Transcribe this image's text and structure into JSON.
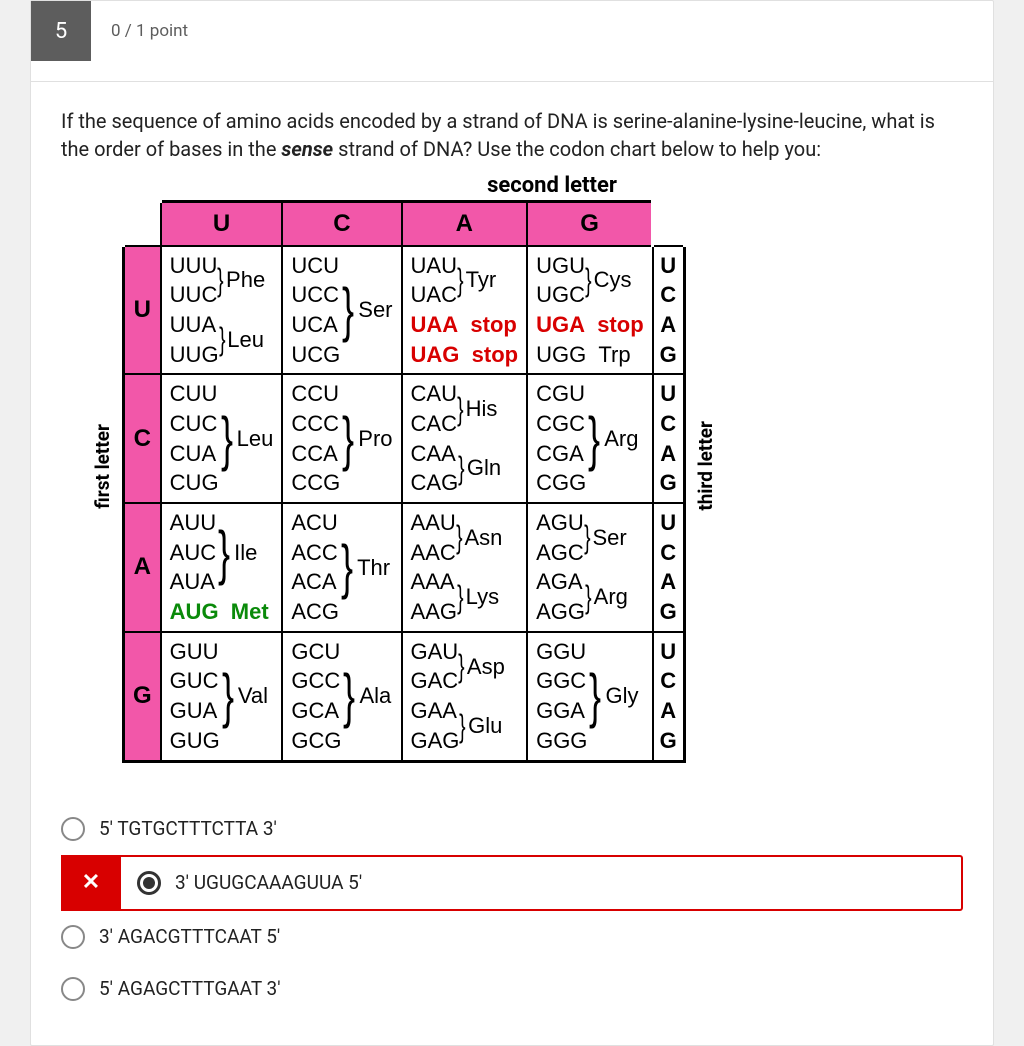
{
  "question": {
    "number": "5",
    "score": "0 / 1 point",
    "text_before": "If the sequence of amino acids encoded by a strand of DNA is serine-alanine-lysine-leucine, what is the order of bases in the ",
    "text_em": "sense",
    "text_after": " strand of DNA? Use the codon chart below to help you:"
  },
  "labels": {
    "second": "second letter",
    "first": "first letter",
    "third": "third letter"
  },
  "codon_chart": {
    "col_letters": [
      "U",
      "C",
      "A",
      "G"
    ],
    "row_letters": [
      "U",
      "C",
      "A",
      "G"
    ],
    "third_letters": [
      "U",
      "C",
      "A",
      "G"
    ],
    "header_bg": "#f257a9",
    "border": "#000000",
    "stop_color": "#d80000",
    "met_color": "#0a8a0a",
    "rows": [
      {
        "first": "U",
        "cells": [
          {
            "groups": [
              {
                "codons": [
                  "UUU",
                  "UUC"
                ],
                "aa": "Phe"
              },
              {
                "codons": [
                  "UUA",
                  "UUG"
                ],
                "aa": "Leu"
              }
            ]
          },
          {
            "groups": [
              {
                "codons": [
                  "UCU",
                  "UCC",
                  "UCA",
                  "UCG"
                ],
                "aa": "Ser"
              }
            ]
          },
          {
            "groups": [
              {
                "codons": [
                  "UAU",
                  "UAC"
                ],
                "aa": "Tyr"
              },
              {
                "codons": [
                  "UAA",
                  "UAG"
                ],
                "aa": "stop",
                "stop": true,
                "inline": true
              }
            ]
          },
          {
            "groups": [
              {
                "codons": [
                  "UGU",
                  "UGC"
                ],
                "aa": "Cys"
              },
              {
                "codons": [
                  "UGA"
                ],
                "aa": "stop",
                "stop": true,
                "inline": true
              },
              {
                "codons": [
                  "UGG"
                ],
                "aa": "Trp",
                "inline": true
              }
            ]
          }
        ]
      },
      {
        "first": "C",
        "cells": [
          {
            "groups": [
              {
                "codons": [
                  "CUU",
                  "CUC",
                  "CUA",
                  "CUG"
                ],
                "aa": "Leu"
              }
            ]
          },
          {
            "groups": [
              {
                "codons": [
                  "CCU",
                  "CCC",
                  "CCA",
                  "CCG"
                ],
                "aa": "Pro"
              }
            ]
          },
          {
            "groups": [
              {
                "codons": [
                  "CAU",
                  "CAC"
                ],
                "aa": "His"
              },
              {
                "codons": [
                  "CAA",
                  "CAG"
                ],
                "aa": "Gln"
              }
            ]
          },
          {
            "groups": [
              {
                "codons": [
                  "CGU",
                  "CGC",
                  "CGA",
                  "CGG"
                ],
                "aa": "Arg"
              }
            ]
          }
        ]
      },
      {
        "first": "A",
        "cells": [
          {
            "groups": [
              {
                "codons": [
                  "AUU",
                  "AUC",
                  "AUA"
                ],
                "aa": "Ile"
              },
              {
                "codons": [
                  "AUG"
                ],
                "aa": "Met",
                "met": true,
                "inline": true
              }
            ]
          },
          {
            "groups": [
              {
                "codons": [
                  "ACU",
                  "ACC",
                  "ACA",
                  "ACG"
                ],
                "aa": "Thr"
              }
            ]
          },
          {
            "groups": [
              {
                "codons": [
                  "AAU",
                  "AAC"
                ],
                "aa": "Asn"
              },
              {
                "codons": [
                  "AAA",
                  "AAG"
                ],
                "aa": "Lys"
              }
            ]
          },
          {
            "groups": [
              {
                "codons": [
                  "AGU",
                  "AGC"
                ],
                "aa": "Ser"
              },
              {
                "codons": [
                  "AGA",
                  "AGG"
                ],
                "aa": "Arg"
              }
            ]
          }
        ]
      },
      {
        "first": "G",
        "cells": [
          {
            "groups": [
              {
                "codons": [
                  "GUU",
                  "GUC",
                  "GUA",
                  "GUG"
                ],
                "aa": "Val"
              }
            ]
          },
          {
            "groups": [
              {
                "codons": [
                  "GCU",
                  "GCC",
                  "GCA",
                  "GCG"
                ],
                "aa": "Ala"
              }
            ]
          },
          {
            "groups": [
              {
                "codons": [
                  "GAU",
                  "GAC"
                ],
                "aa": "Asp"
              },
              {
                "codons": [
                  "GAA",
                  "GAG"
                ],
                "aa": "Glu"
              }
            ]
          },
          {
            "groups": [
              {
                "codons": [
                  "GGU",
                  "GGC",
                  "GGA",
                  "GGG"
                ],
                "aa": "Gly"
              }
            ]
          }
        ]
      }
    ]
  },
  "answers": [
    {
      "text": "5' TGTGCTTTCTTA 3'",
      "selected": false,
      "wrong": false
    },
    {
      "text": "3' UGUGCAAAGUUA 5'",
      "selected": true,
      "wrong": true
    },
    {
      "text": "3' AGACGTTTCAAT 5'",
      "selected": false,
      "wrong": false
    },
    {
      "text": "5' AGAGCTTTGAAT 3'",
      "selected": false,
      "wrong": false
    }
  ],
  "colors": {
    "wrong_bg": "#d80000",
    "card_bg": "#ffffff",
    "body_bg": "#f0f0f0",
    "qnum_bg": "#5d5d5d"
  }
}
